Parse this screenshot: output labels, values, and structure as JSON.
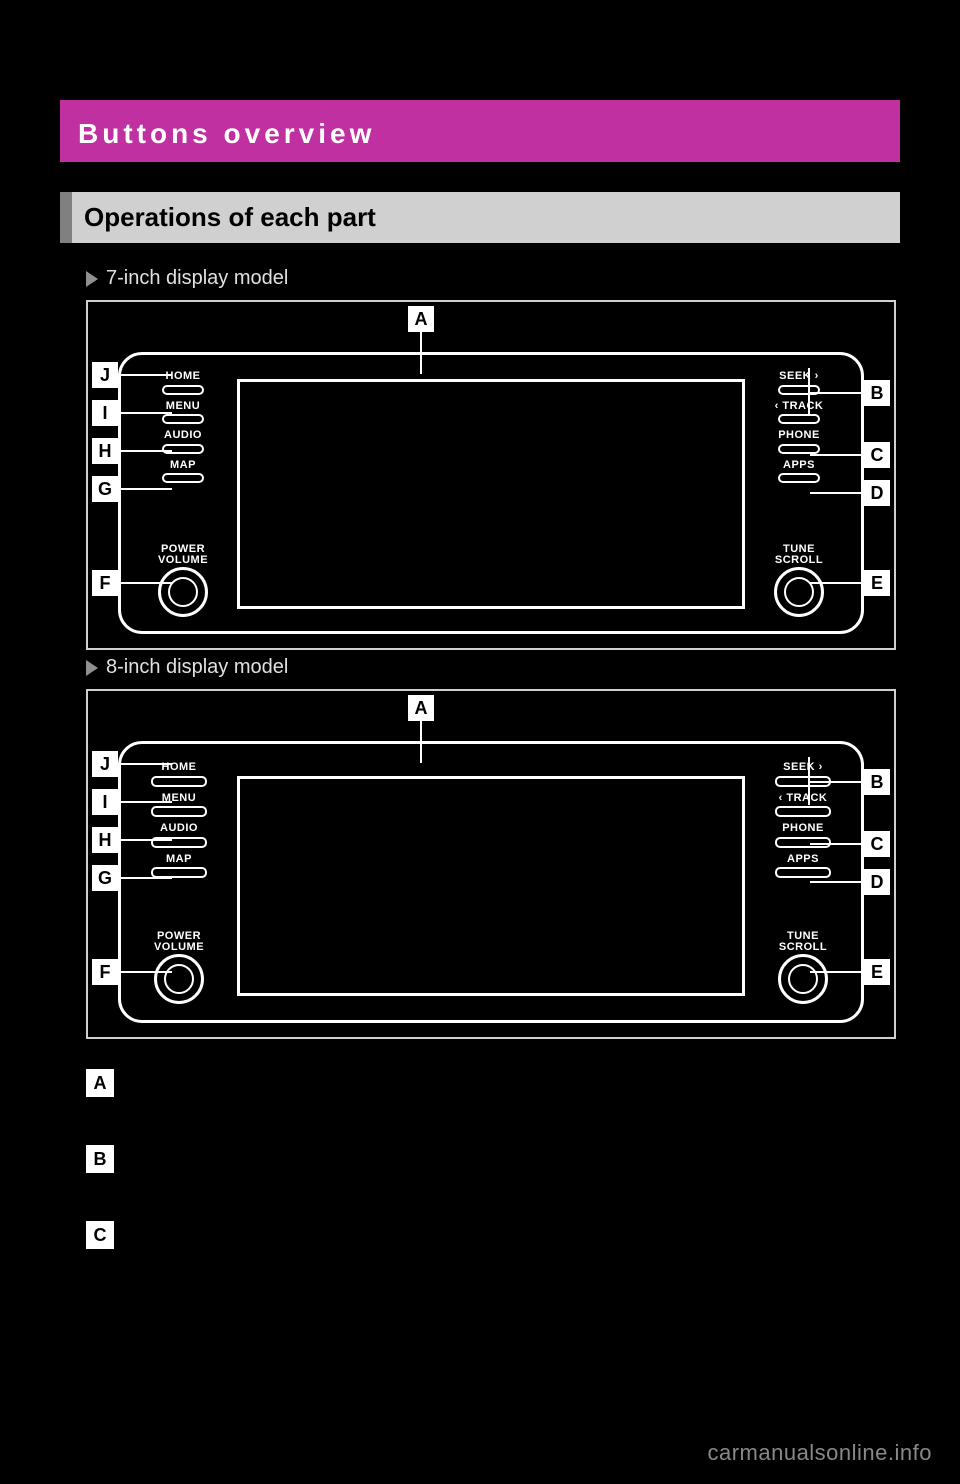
{
  "page_header": "",
  "section_title": "Buttons overview",
  "sub_section": "Operations of each part",
  "variants": [
    {
      "label": "7-inch display model",
      "cls": "variant-7"
    },
    {
      "label": "8-inch display model",
      "cls": "variant-8"
    }
  ],
  "left_buttons": [
    {
      "label": "HOME",
      "callout": "J"
    },
    {
      "label": "MENU",
      "callout": "I"
    },
    {
      "label": "AUDIO",
      "callout": "H"
    },
    {
      "label": "MAP",
      "callout": "G"
    }
  ],
  "left_knob": {
    "label": "POWER\nVOLUME",
    "callout": "F"
  },
  "right_seek": {
    "top_label": "SEEK ›",
    "bottom_label": "‹ TRACK",
    "callout": "B"
  },
  "right_buttons": [
    {
      "label": "PHONE",
      "callout": "C"
    },
    {
      "label": "APPS",
      "callout": "D"
    }
  ],
  "right_knob": {
    "label": "TUNE\nSCROLL",
    "callout": "E"
  },
  "screen_callout": "A",
  "definitions": [
    {
      "letter": "A",
      "text": ""
    },
    {
      "letter": "B",
      "text": ""
    },
    {
      "letter": "C",
      "text": ""
    }
  ],
  "watermark": "carmanualsonline.info",
  "colors": {
    "accent": "#c030a0",
    "bg": "#000000",
    "line": "#ffffff",
    "subheader_bg": "#d0d0d0",
    "subheader_border": "#808080"
  }
}
